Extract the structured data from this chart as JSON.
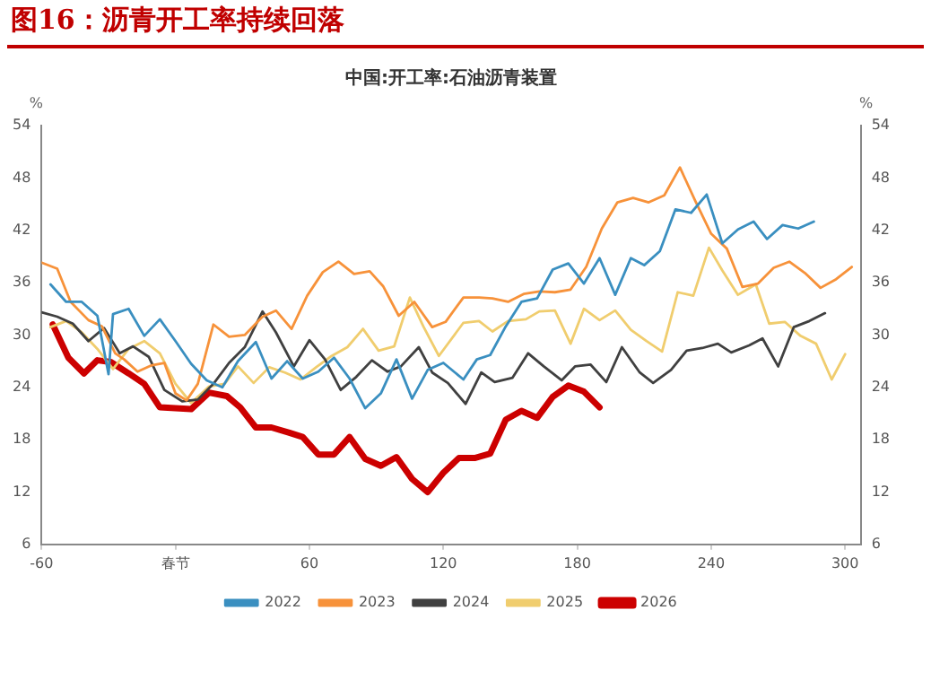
{
  "chart_data": {
    "type": "line",
    "title": "中国:开工率:石油沥青装置",
    "subtitle": "图16：沥青开工率持续回落",
    "ylabel": "%",
    "y2label": "%",
    "xlim": [
      -60,
      307
    ],
    "xticks": [
      -60,
      {
        "value": 0,
        "label": "春节"
      },
      60,
      120,
      180,
      240,
      300
    ],
    "ylim": [
      6,
      54
    ],
    "yticks": [
      6,
      12,
      18,
      24,
      30,
      36,
      42,
      48,
      54
    ],
    "y2lim": [
      6,
      54
    ],
    "y2ticks": [
      6,
      12,
      18,
      24,
      30,
      36,
      42,
      48,
      54
    ],
    "grid": false,
    "legend": "bottom",
    "marker": "none",
    "line_style": "solid",
    "series": [
      {
        "name": "2022",
        "color": "#3a8fc0",
        "x": [
          -56,
          -49,
          -42,
          -35,
          -30,
          -28,
          -21,
          -14,
          -7,
          0,
          7,
          14,
          21,
          28,
          36,
          43,
          50,
          57,
          64,
          71,
          78,
          85,
          92,
          99,
          106,
          113,
          120,
          129,
          135,
          141,
          148,
          155,
          162,
          169,
          176,
          183,
          190,
          197,
          204,
          210,
          217,
          224,
          231,
          238,
          245,
          252,
          259,
          265,
          272,
          279,
          286
        ],
        "values": [
          35.8,
          33.8,
          33.8,
          32.2,
          25.5,
          32.4,
          33.0,
          29.9,
          31.8,
          29.3,
          26.7,
          24.8,
          24.0,
          27.0,
          29.2,
          25.0,
          27.0,
          25.0,
          25.8,
          27.4,
          25.0,
          21.6,
          23.3,
          27.2,
          22.7,
          26.0,
          26.8,
          24.9,
          27.2,
          27.7,
          31.0,
          33.8,
          34.2,
          37.5,
          38.2,
          35.9,
          38.8,
          34.6,
          38.8,
          38.0,
          39.6,
          44.4,
          44.0,
          46.1,
          40.5,
          42.1,
          43.0,
          41.0,
          42.6,
          42.2,
          43.0
        ]
      },
      {
        "name": "2023",
        "color": "#f7923a",
        "x": [
          -60,
          -53,
          -47,
          -39,
          -33,
          -27,
          -23,
          -17,
          -11,
          -5,
          0,
          5,
          10,
          17,
          24,
          31,
          39,
          45,
          52,
          59,
          66,
          73,
          80,
          87,
          93,
          100,
          107,
          115,
          121,
          129,
          136,
          142,
          149,
          156,
          163,
          170,
          177,
          184,
          191,
          198,
          205,
          212,
          219,
          226,
          233,
          240,
          247,
          254,
          261,
          268,
          275,
          282,
          289,
          296,
          303
        ],
        "values": [
          38.3,
          37.6,
          33.8,
          31.7,
          31.0,
          27.9,
          27.2,
          25.8,
          26.5,
          26.8,
          23.3,
          22.5,
          24.4,
          31.2,
          29.8,
          30.0,
          32.1,
          32.8,
          30.7,
          34.5,
          37.2,
          38.4,
          37.0,
          37.3,
          35.6,
          32.2,
          33.8,
          30.9,
          31.5,
          34.3,
          34.3,
          34.2,
          33.8,
          34.7,
          35.0,
          34.9,
          35.2,
          37.8,
          42.2,
          45.2,
          45.7,
          45.2,
          46.0,
          49.2,
          45.3,
          41.6,
          39.9,
          35.5,
          35.9,
          37.7,
          38.4,
          37.1,
          35.4,
          36.4,
          37.8
        ]
      },
      {
        "name": "2024",
        "color": "#404040",
        "x": [
          -60,
          -53,
          -46,
          -39,
          -32,
          -25,
          -19,
          -12,
          -5,
          3,
          10,
          17,
          24,
          31,
          39,
          45,
          53,
          60,
          67,
          74,
          81,
          88,
          95,
          101,
          109,
          115,
          122,
          130,
          137,
          143,
          151,
          158,
          165,
          173,
          179,
          186,
          193,
          200,
          208,
          214,
          222,
          229,
          236,
          243,
          249,
          257,
          263,
          270,
          277,
          284,
          291
        ],
        "values": [
          32.6,
          32.1,
          31.3,
          29.3,
          30.8,
          27.9,
          28.7,
          27.5,
          23.7,
          22.4,
          22.6,
          24.4,
          26.8,
          28.6,
          32.7,
          30.3,
          26.4,
          29.4,
          27.2,
          23.7,
          25.2,
          27.1,
          25.8,
          26.4,
          28.6,
          25.7,
          24.5,
          22.1,
          25.7,
          24.6,
          25.1,
          27.9,
          26.4,
          24.8,
          26.4,
          26.6,
          24.6,
          28.6,
          25.7,
          24.5,
          26.0,
          28.2,
          28.5,
          29.0,
          28.0,
          28.8,
          29.6,
          26.4,
          30.9,
          31.6,
          32.5
        ]
      },
      {
        "name": "2025",
        "color": "#f0cd6e",
        "x": [
          -56,
          -49,
          -42,
          -35,
          -28,
          -21,
          -14,
          -7,
          0,
          7,
          15,
          22,
          28,
          35,
          42,
          49,
          56,
          63,
          70,
          77,
          84,
          91,
          98,
          105,
          111,
          118,
          129,
          136,
          142,
          149,
          157,
          163,
          170,
          177,
          183,
          190,
          197,
          204,
          211,
          218,
          225,
          232,
          239,
          245,
          252,
          260,
          266,
          273,
          280,
          287,
          294,
          300
        ],
        "values": [
          30.9,
          31.6,
          30.3,
          28.4,
          26.1,
          28.4,
          29.3,
          27.9,
          24.4,
          22.2,
          24.1,
          24.4,
          26.4,
          24.5,
          26.3,
          25.7,
          24.9,
          26.3,
          27.6,
          28.6,
          30.7,
          28.2,
          28.7,
          34.3,
          31.0,
          27.6,
          31.4,
          31.6,
          30.4,
          31.6,
          31.8,
          32.7,
          32.8,
          29.0,
          33.0,
          31.7,
          32.8,
          30.6,
          29.3,
          28.1,
          34.9,
          34.5,
          40.0,
          37.4,
          34.6,
          35.8,
          31.3,
          31.5,
          29.9,
          29.0,
          24.9,
          27.8
        ]
      },
      {
        "name": "2026",
        "color": "#cc0000",
        "x": [
          -55,
          -48,
          -41,
          -35,
          -29,
          -21,
          -14,
          -7,
          7,
          15,
          23,
          29,
          36,
          43,
          51,
          57,
          64,
          71,
          78,
          85,
          92,
          99,
          106,
          113,
          120,
          127,
          134,
          141,
          148,
          155,
          162,
          169,
          176,
          183,
          190
        ],
        "values": [
          31.2,
          27.4,
          25.6,
          27.1,
          26.9,
          25.6,
          24.4,
          21.7,
          21.5,
          23.4,
          23.0,
          21.7,
          19.4,
          19.4,
          18.8,
          18.3,
          16.3,
          16.3,
          18.3,
          15.8,
          15.0,
          16.0,
          13.5,
          12.0,
          14.2,
          15.9,
          15.9,
          16.4,
          20.3,
          21.3,
          20.5,
          22.9,
          24.2,
          23.5,
          21.7
        ]
      }
    ]
  }
}
